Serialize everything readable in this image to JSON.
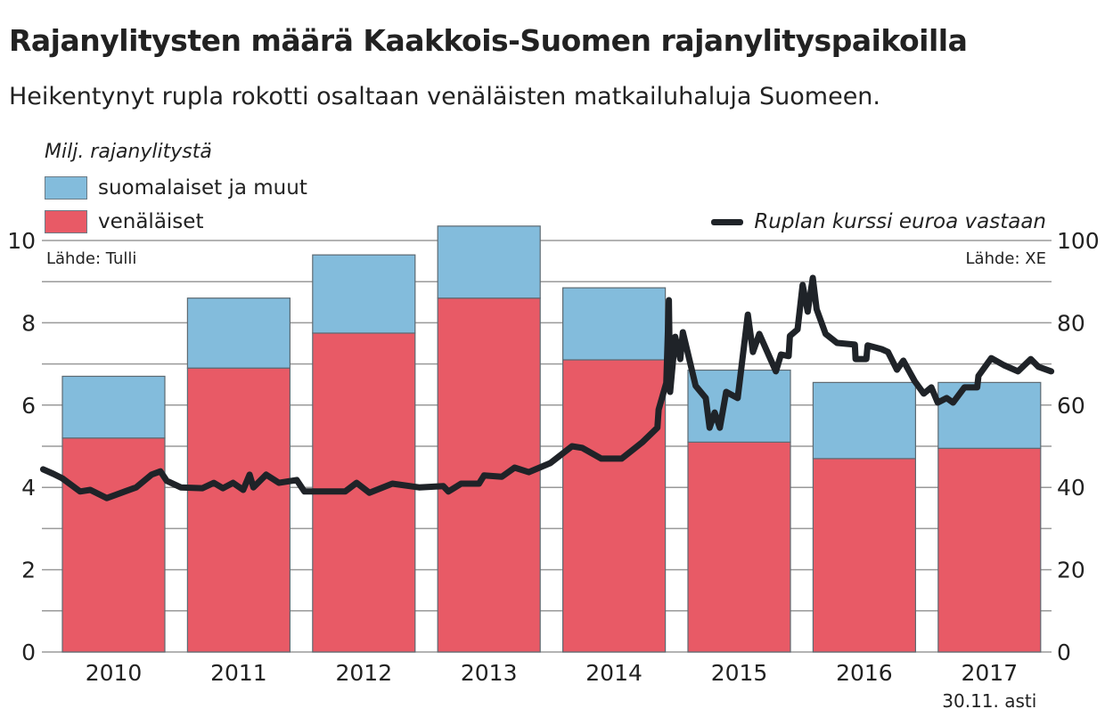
{
  "title": "Rajanylitysten määrä Kaakkois-Suomen rajanylityspaikoilla",
  "subtitle": "Heikentynyt rupla rokotti osaltaan venäläisten matkailuhaluja Suomeen.",
  "colors": {
    "venalaiset": "#e85a66",
    "suomalaiset": "#83bcdc",
    "line": "#1f2328",
    "grid": "#9a9a9a"
  },
  "chart_data": {
    "type": "bar+line",
    "ylabel": "Milj. rajanylitystä",
    "ylim": [
      0,
      10
    ],
    "y_ticks": [
      "0",
      "2",
      "4",
      "6",
      "8",
      "10"
    ],
    "y2lim": [
      0,
      100
    ],
    "y2_ticks": [
      "0",
      "20",
      "40",
      "60",
      "80",
      "100"
    ],
    "grid": true,
    "categories": [
      "2010",
      "2011",
      "2012",
      "2013",
      "2014",
      "2015",
      "2016",
      "2017"
    ],
    "category_note": "30.11. asti",
    "stacked": true,
    "series": [
      {
        "name": "venäläiset",
        "values": [
          5.2,
          6.9,
          7.75,
          8.6,
          7.1,
          5.1,
          4.7,
          4.95
        ]
      },
      {
        "name": "suomalaiset ja muut",
        "values": [
          1.5,
          1.7,
          1.9,
          1.75,
          1.75,
          1.75,
          1.85,
          1.6
        ]
      }
    ],
    "line_series": {
      "name": "Ruplan kurssi euroa vastaan",
      "axis": "right",
      "points": [
        [
          2010.01,
          44.4
        ],
        [
          2010.09,
          43.3
        ],
        [
          2010.16,
          42.2
        ],
        [
          2010.3,
          39.0
        ],
        [
          2010.38,
          39.4
        ],
        [
          2010.51,
          37.4
        ],
        [
          2010.65,
          39.0
        ],
        [
          2010.74,
          40.0
        ],
        [
          2010.86,
          43.1
        ],
        [
          2010.93,
          43.9
        ],
        [
          2010.98,
          41.6
        ],
        [
          2011.09,
          40.0
        ],
        [
          2011.26,
          39.8
        ],
        [
          2011.35,
          41.1
        ],
        [
          2011.42,
          39.8
        ],
        [
          2011.5,
          41.1
        ],
        [
          2011.58,
          39.4
        ],
        [
          2011.63,
          43.1
        ],
        [
          2011.66,
          40.0
        ],
        [
          2011.76,
          43.1
        ],
        [
          2011.86,
          41.1
        ],
        [
          2012.0,
          41.8
        ],
        [
          2012.06,
          39.0
        ],
        [
          2012.38,
          39.0
        ],
        [
          2012.47,
          41.1
        ],
        [
          2012.57,
          38.7
        ],
        [
          2012.75,
          40.9
        ],
        [
          2012.96,
          40.0
        ],
        [
          2013.15,
          40.3
        ],
        [
          2013.19,
          39.0
        ],
        [
          2013.29,
          40.9
        ],
        [
          2013.43,
          40.9
        ],
        [
          2013.47,
          42.9
        ],
        [
          2013.61,
          42.6
        ],
        [
          2013.71,
          44.8
        ],
        [
          2013.82,
          43.7
        ],
        [
          2013.99,
          45.9
        ],
        [
          2014.16,
          50.0
        ],
        [
          2014.24,
          49.6
        ],
        [
          2014.39,
          47.0
        ],
        [
          2014.55,
          47.0
        ],
        [
          2014.71,
          50.9
        ],
        [
          2014.83,
          54.5
        ],
        [
          2014.84,
          58.9
        ],
        [
          2014.9,
          65.4
        ],
        [
          2014.92,
          85.5
        ],
        [
          2014.93,
          63.2
        ],
        [
          2014.97,
          76.6
        ],
        [
          2015.01,
          71.2
        ],
        [
          2015.03,
          77.7
        ],
        [
          2015.13,
          64.7
        ],
        [
          2015.21,
          61.7
        ],
        [
          2015.24,
          54.5
        ],
        [
          2015.28,
          58.2
        ],
        [
          2015.32,
          54.5
        ],
        [
          2015.37,
          63.2
        ],
        [
          2015.46,
          61.7
        ],
        [
          2015.54,
          82.0
        ],
        [
          2015.58,
          72.9
        ],
        [
          2015.63,
          77.3
        ],
        [
          2015.76,
          68.2
        ],
        [
          2015.8,
          72.3
        ],
        [
          2015.86,
          71.9
        ],
        [
          2015.87,
          76.8
        ],
        [
          2015.93,
          78.4
        ],
        [
          2015.97,
          89.2
        ],
        [
          2016.01,
          82.7
        ],
        [
          2016.05,
          90.9
        ],
        [
          2016.08,
          83.3
        ],
        [
          2016.15,
          77.3
        ],
        [
          2016.24,
          75.1
        ],
        [
          2016.38,
          74.7
        ],
        [
          2016.385,
          71.2
        ],
        [
          2016.47,
          71.2
        ],
        [
          2016.48,
          74.5
        ],
        [
          2016.59,
          73.6
        ],
        [
          2016.64,
          72.9
        ],
        [
          2016.71,
          68.6
        ],
        [
          2016.76,
          70.8
        ],
        [
          2016.85,
          65.8
        ],
        [
          2016.92,
          62.8
        ],
        [
          2016.98,
          64.3
        ],
        [
          2017.03,
          60.6
        ],
        [
          2017.1,
          61.7
        ],
        [
          2017.15,
          60.6
        ],
        [
          2017.24,
          64.3
        ],
        [
          2017.34,
          64.3
        ],
        [
          2017.35,
          67.1
        ],
        [
          2017.45,
          71.4
        ],
        [
          2017.55,
          69.7
        ],
        [
          2017.66,
          68.2
        ],
        [
          2017.76,
          71.2
        ],
        [
          2017.82,
          69.3
        ],
        [
          2017.92,
          68.2
        ]
      ]
    },
    "source_left": "Lähde: Tulli",
    "source_right": "Lähde: XE",
    "legend_placement": "top-left"
  }
}
